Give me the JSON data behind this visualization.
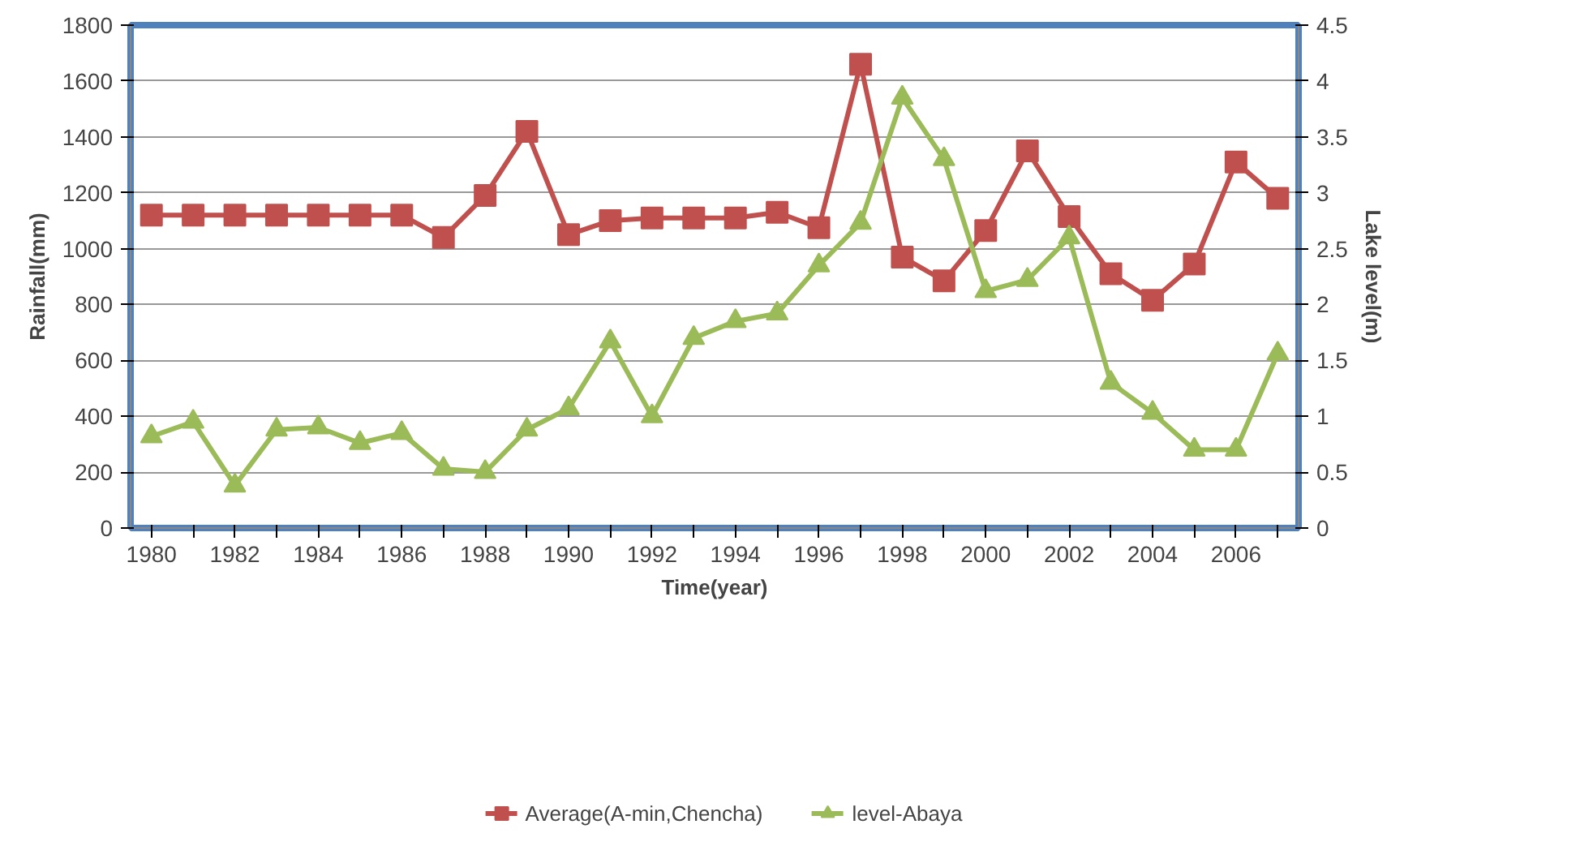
{
  "chart_data": {
    "type": "line",
    "xlabel": "Time(year)",
    "ylabel": "Rainfall(mm)",
    "y2label": "Lake level(m)",
    "categories": [
      "1980",
      null,
      "1982",
      null,
      "1984",
      null,
      "1986",
      null,
      "1988",
      null,
      "1990",
      null,
      "1992",
      null,
      "1994",
      null,
      "1996",
      null,
      "1998",
      null,
      "2000",
      null,
      "2002",
      null,
      "2004",
      null,
      "2006",
      null
    ],
    "series": [
      {
        "name": "Average(A-min,Chencha)",
        "color": "#c0504d",
        "marker": "square",
        "values": [
          1120,
          1120,
          1120,
          1120,
          1120,
          1120,
          1120,
          1040,
          1190,
          1420,
          1050,
          1100,
          1110,
          1110,
          1110,
          1130,
          1075,
          1660,
          970,
          885,
          1065,
          1350,
          1115,
          910,
          815,
          945,
          1310,
          1180
        ]
      },
      {
        "name": "level-Abaya",
        "color": "#9bbb59",
        "marker": "triangle",
        "axis": "y2",
        "values": [
          0.82,
          0.95,
          0.38,
          0.88,
          0.9,
          0.76,
          0.85,
          0.53,
          0.5,
          0.88,
          1.07,
          1.67,
          1.0,
          1.7,
          1.85,
          1.92,
          2.35,
          2.73,
          3.85,
          3.3,
          2.12,
          2.22,
          2.6,
          1.3,
          1.03,
          0.7,
          0.7,
          1.56
        ]
      }
    ],
    "ylim": [
      0,
      1800
    ],
    "yticks": [
      0,
      200,
      400,
      600,
      800,
      1000,
      1200,
      1400,
      1600,
      1800
    ],
    "y2lim": [
      0,
      4.5
    ],
    "y2ticks": [
      0,
      0.5,
      1,
      1.5,
      2,
      2.5,
      3,
      3.5,
      4,
      4.5
    ],
    "grid": "y",
    "legend": "bottom",
    "line_style": "solid"
  }
}
